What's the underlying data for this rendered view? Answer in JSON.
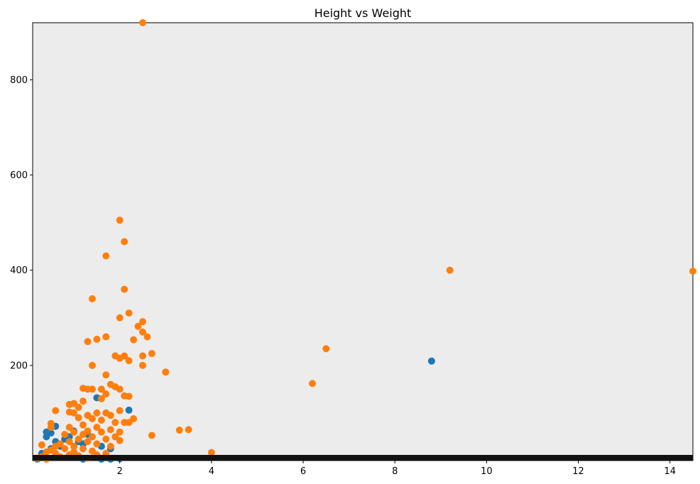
{
  "chart_data": {
    "type": "scatter",
    "title": "Height vs Weight",
    "xlabel": "",
    "ylabel": "",
    "xlim": [
      0.1,
      14.5
    ],
    "ylim": [
      0,
      920
    ],
    "xticks": [
      2,
      4,
      6,
      8,
      10,
      12,
      14
    ],
    "yticks": [
      200,
      400,
      600,
      800
    ],
    "grid": false,
    "background": "#ececec",
    "baseline_band_color": "#111111",
    "series": [
      {
        "color": "#1f77b4",
        "points": [
          [
            0.4,
            60
          ],
          [
            0.4,
            50
          ],
          [
            0.5,
            58
          ],
          [
            0.6,
            72
          ],
          [
            0.3,
            15
          ],
          [
            0.5,
            25
          ],
          [
            0.6,
            40
          ],
          [
            0.7,
            30
          ],
          [
            0.8,
            45
          ],
          [
            0.9,
            50
          ],
          [
            1.0,
            62
          ],
          [
            1.1,
            40
          ],
          [
            1.2,
            35
          ],
          [
            1.3,
            55
          ],
          [
            1.5,
            132
          ],
          [
            1.6,
            30
          ],
          [
            1.8,
            25
          ],
          [
            2.2,
            106
          ],
          [
            2.0,
            4
          ],
          [
            1.6,
            0
          ],
          [
            1.8,
            0
          ],
          [
            1.2,
            0
          ],
          [
            0.2,
            0
          ],
          [
            8.8,
            209
          ]
        ]
      },
      {
        "color": "#ff7f0e",
        "points": [
          [
            2.5,
            920
          ],
          [
            2.0,
            505
          ],
          [
            2.1,
            460
          ],
          [
            1.7,
            430
          ],
          [
            2.1,
            360
          ],
          [
            1.4,
            340
          ],
          [
            2.2,
            310
          ],
          [
            2.0,
            300
          ],
          [
            2.5,
            292
          ],
          [
            2.4,
            282
          ],
          [
            2.5,
            270
          ],
          [
            2.6,
            260
          ],
          [
            1.7,
            260
          ],
          [
            1.5,
            255
          ],
          [
            2.3,
            254
          ],
          [
            1.3,
            250
          ],
          [
            2.7,
            225
          ],
          [
            1.9,
            220
          ],
          [
            2.1,
            220
          ],
          [
            2.5,
            220
          ],
          [
            2.0,
            215
          ],
          [
            2.2,
            210
          ],
          [
            1.4,
            200
          ],
          [
            2.5,
            200
          ],
          [
            3.0,
            186
          ],
          [
            1.7,
            180
          ],
          [
            1.8,
            160
          ],
          [
            1.9,
            155
          ],
          [
            1.2,
            152
          ],
          [
            1.3,
            150
          ],
          [
            1.4,
            150
          ],
          [
            1.6,
            150
          ],
          [
            2.0,
            150
          ],
          [
            1.7,
            140
          ],
          [
            2.1,
            136
          ],
          [
            2.2,
            135
          ],
          [
            1.6,
            130
          ],
          [
            1.2,
            125
          ],
          [
            1.0,
            120
          ],
          [
            0.9,
            118
          ],
          [
            1.1,
            112
          ],
          [
            0.6,
            105
          ],
          [
            0.9,
            102
          ],
          [
            1.0,
            100
          ],
          [
            1.5,
            100
          ],
          [
            1.7,
            100
          ],
          [
            2.0,
            105
          ],
          [
            1.3,
            95
          ],
          [
            1.8,
            95
          ],
          [
            1.1,
            90
          ],
          [
            1.4,
            88
          ],
          [
            2.3,
            88
          ],
          [
            1.6,
            85
          ],
          [
            1.9,
            80
          ],
          [
            2.1,
            80
          ],
          [
            2.2,
            80
          ],
          [
            0.5,
            78
          ],
          [
            1.2,
            75
          ],
          [
            0.9,
            70
          ],
          [
            0.5,
            70
          ],
          [
            1.5,
            70
          ],
          [
            1.8,
            65
          ],
          [
            1.3,
            62
          ],
          [
            1.0,
            60
          ],
          [
            1.6,
            60
          ],
          [
            2.0,
            60
          ],
          [
            1.2,
            55
          ],
          [
            0.8,
            55
          ],
          [
            1.4,
            50
          ],
          [
            1.9,
            50
          ],
          [
            2.7,
            53
          ],
          [
            1.1,
            45
          ],
          [
            1.7,
            45
          ],
          [
            2.0,
            42
          ],
          [
            0.9,
            40
          ],
          [
            1.3,
            40
          ],
          [
            1.5,
            35
          ],
          [
            0.7,
            35
          ],
          [
            1.0,
            30
          ],
          [
            1.8,
            30
          ],
          [
            0.3,
            33
          ],
          [
            0.6,
            30
          ],
          [
            1.2,
            25
          ],
          [
            0.8,
            25
          ],
          [
            0.5,
            22
          ],
          [
            1.4,
            20
          ],
          [
            0.4,
            18
          ],
          [
            1.0,
            18
          ],
          [
            1.7,
            15
          ],
          [
            0.6,
            15
          ],
          [
            0.9,
            12
          ],
          [
            1.1,
            10
          ],
          [
            1.5,
            12
          ],
          [
            0.3,
            8
          ],
          [
            0.7,
            8
          ],
          [
            0.2,
            5
          ],
          [
            0.4,
            3
          ],
          [
            1.3,
            5
          ],
          [
            3.3,
            64
          ],
          [
            3.5,
            65
          ],
          [
            4.0,
            17
          ],
          [
            6.2,
            162
          ],
          [
            6.5,
            235
          ],
          [
            9.2,
            400
          ],
          [
            14.5,
            398
          ]
        ]
      }
    ]
  }
}
